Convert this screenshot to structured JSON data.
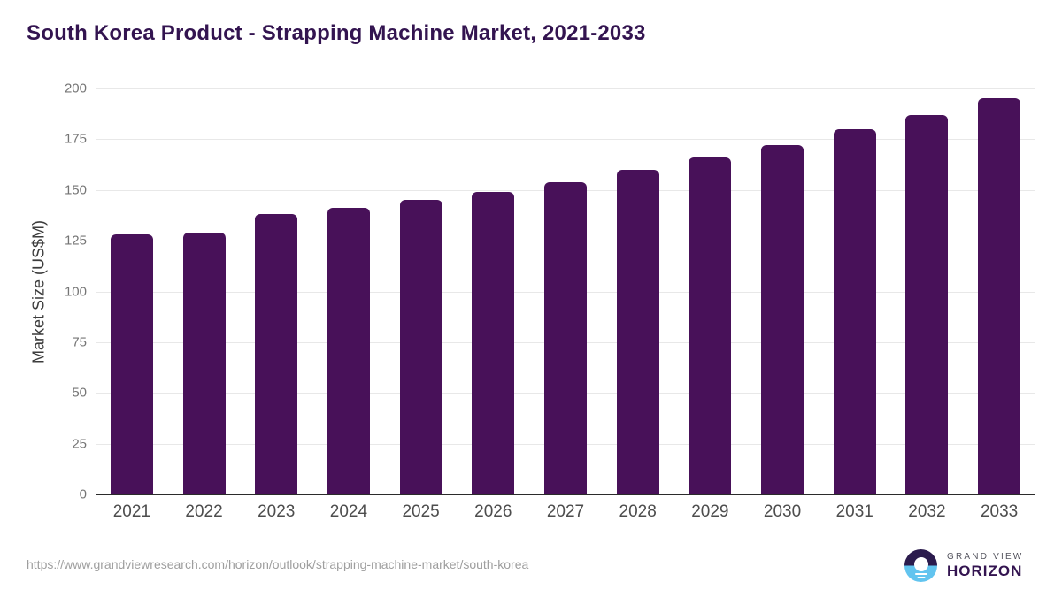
{
  "title": "South Korea Product - Strapping Machine Market, 2021-2033",
  "chart_data": {
    "type": "bar",
    "title": "South Korea Product - Strapping Machine Market, 2021-2033",
    "categories": [
      "2021",
      "2022",
      "2023",
      "2024",
      "2025",
      "2026",
      "2027",
      "2028",
      "2029",
      "2030",
      "2031",
      "2032",
      "2033"
    ],
    "values": [
      128,
      129,
      138,
      141,
      145,
      149,
      154,
      160,
      166,
      172,
      180,
      187,
      195
    ],
    "xlabel": "",
    "ylabel": "Market Size (US$M)",
    "ylim": [
      0,
      200
    ],
    "ytick_step": 25,
    "yticks": [
      0,
      25,
      50,
      75,
      100,
      125,
      150,
      175,
      200
    ],
    "grid": true,
    "legend": false,
    "bar_color": "#481159"
  },
  "footer": {
    "source_url": "https://www.grandviewresearch.com/horizon/outlook/strapping-machine-market/south-korea",
    "logo": {
      "brand_top": "GRAND VIEW",
      "brand_bottom": "HORIZON"
    }
  },
  "colors": {
    "bar": "#481159",
    "title": "#331450",
    "axis_line": "#2b2b2b",
    "gridline": "#e8e8e8",
    "tick_label": "#757575",
    "x_label": "#4d4d4d",
    "url_text": "#9e9e9e",
    "logo_dark": "#2b1b4d",
    "logo_blue": "#62c4ef"
  }
}
